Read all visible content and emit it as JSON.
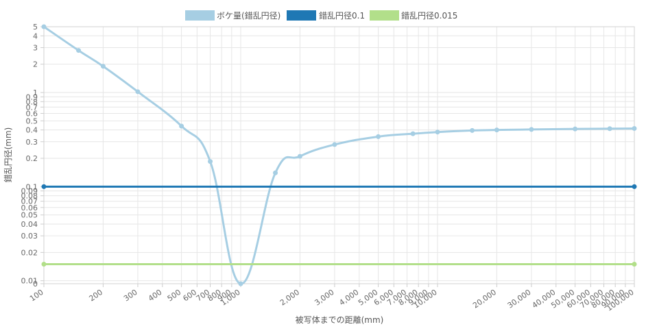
{
  "chart_data": {
    "type": "line",
    "xlabel": "被写体までの距離(mm)",
    "ylabel": "錯乱円径(mm)",
    "x_scale": "log",
    "y_scale": "log",
    "xlim": [
      100,
      100000
    ],
    "ylim": [
      0.0093,
      5
    ],
    "grid": true,
    "legend_position": "top-center",
    "x_ticks": [
      {
        "v": 100,
        "label": "100",
        "major": true
      },
      {
        "v": 200,
        "label": "200",
        "major": false
      },
      {
        "v": 300,
        "label": "300",
        "major": false
      },
      {
        "v": 400,
        "label": "400",
        "major": false
      },
      {
        "v": 500,
        "label": "500",
        "major": false
      },
      {
        "v": 600,
        "label": "600",
        "major": false
      },
      {
        "v": 700,
        "label": "700",
        "major": false
      },
      {
        "v": 800,
        "label": "800",
        "major": false
      },
      {
        "v": 900,
        "label": "900",
        "major": false
      },
      {
        "v": 1000,
        "label": "1,000",
        "major": true
      },
      {
        "v": 2000,
        "label": "2,000",
        "major": false
      },
      {
        "v": 3000,
        "label": "3,000",
        "major": false
      },
      {
        "v": 4000,
        "label": "4,000",
        "major": false
      },
      {
        "v": 5000,
        "label": "5,000",
        "major": false
      },
      {
        "v": 6000,
        "label": "6,000",
        "major": false
      },
      {
        "v": 7000,
        "label": "7,000",
        "major": false
      },
      {
        "v": 8000,
        "label": "8,000",
        "major": false
      },
      {
        "v": 9000,
        "label": "9,000",
        "major": false
      },
      {
        "v": 10000,
        "label": "10,000",
        "major": true
      },
      {
        "v": 20000,
        "label": "20,000",
        "major": false
      },
      {
        "v": 30000,
        "label": "30,000",
        "major": false
      },
      {
        "v": 40000,
        "label": "40,000",
        "major": false
      },
      {
        "v": 50000,
        "label": "50,000",
        "major": false
      },
      {
        "v": 60000,
        "label": "60,000",
        "major": false
      },
      {
        "v": 70000,
        "label": "70,000",
        "major": false
      },
      {
        "v": 80000,
        "label": "80,000",
        "major": false
      },
      {
        "v": 90000,
        "label": "90,000",
        "major": false
      },
      {
        "v": 100000,
        "label": "100,000",
        "major": true
      }
    ],
    "y_ticks": [
      {
        "v": 0.0093,
        "label": "0"
      },
      {
        "v": 0.01,
        "label": "0.01"
      },
      {
        "v": 0.02,
        "label": "0.02"
      },
      {
        "v": 0.03,
        "label": "0.03"
      },
      {
        "v": 0.04,
        "label": "0.04"
      },
      {
        "v": 0.05,
        "label": "0.05"
      },
      {
        "v": 0.06,
        "label": "0.06"
      },
      {
        "v": 0.07,
        "label": "0.07"
      },
      {
        "v": 0.08,
        "label": "0.08"
      },
      {
        "v": 0.09,
        "label": "0.09"
      },
      {
        "v": 0.1,
        "label": "0.1"
      },
      {
        "v": 0.2,
        "label": "0.2"
      },
      {
        "v": 0.3,
        "label": "0.3"
      },
      {
        "v": 0.4,
        "label": "0.4"
      },
      {
        "v": 0.5,
        "label": "0.5"
      },
      {
        "v": 0.6,
        "label": "0.6"
      },
      {
        "v": 0.7,
        "label": "0.7"
      },
      {
        "v": 0.8,
        "label": "0.8"
      },
      {
        "v": 0.9,
        "label": "0.9"
      },
      {
        "v": 1,
        "label": "1"
      },
      {
        "v": 2,
        "label": "2"
      },
      {
        "v": 3,
        "label": "3"
      },
      {
        "v": 4,
        "label": "4"
      },
      {
        "v": 5,
        "label": "5"
      }
    ],
    "series": [
      {
        "name": "ボケ量(錯乱円径)",
        "color": "#a6cee3",
        "points": [
          [
            100,
            5.0
          ],
          [
            150,
            2.8
          ],
          [
            200,
            1.9
          ],
          [
            300,
            1.02
          ],
          [
            500,
            0.44
          ],
          [
            700,
            0.185
          ],
          [
            1000,
            0.0093
          ],
          [
            1500,
            0.14
          ],
          [
            2000,
            0.21
          ],
          [
            3000,
            0.28
          ],
          [
            5000,
            0.34
          ],
          [
            7500,
            0.365
          ],
          [
            10000,
            0.38
          ],
          [
            15000,
            0.395
          ],
          [
            20000,
            0.4
          ],
          [
            30000,
            0.405
          ],
          [
            50000,
            0.41
          ],
          [
            75000,
            0.413
          ],
          [
            100000,
            0.415
          ]
        ]
      },
      {
        "name": "錯乱円径0.1",
        "color": "#1f78b4",
        "points": [
          [
            100,
            0.1
          ],
          [
            100000,
            0.1
          ]
        ]
      },
      {
        "name": "錯乱円径0.015",
        "color": "#b2df8a",
        "points": [
          [
            100,
            0.015
          ],
          [
            100000,
            0.015
          ]
        ]
      }
    ]
  }
}
